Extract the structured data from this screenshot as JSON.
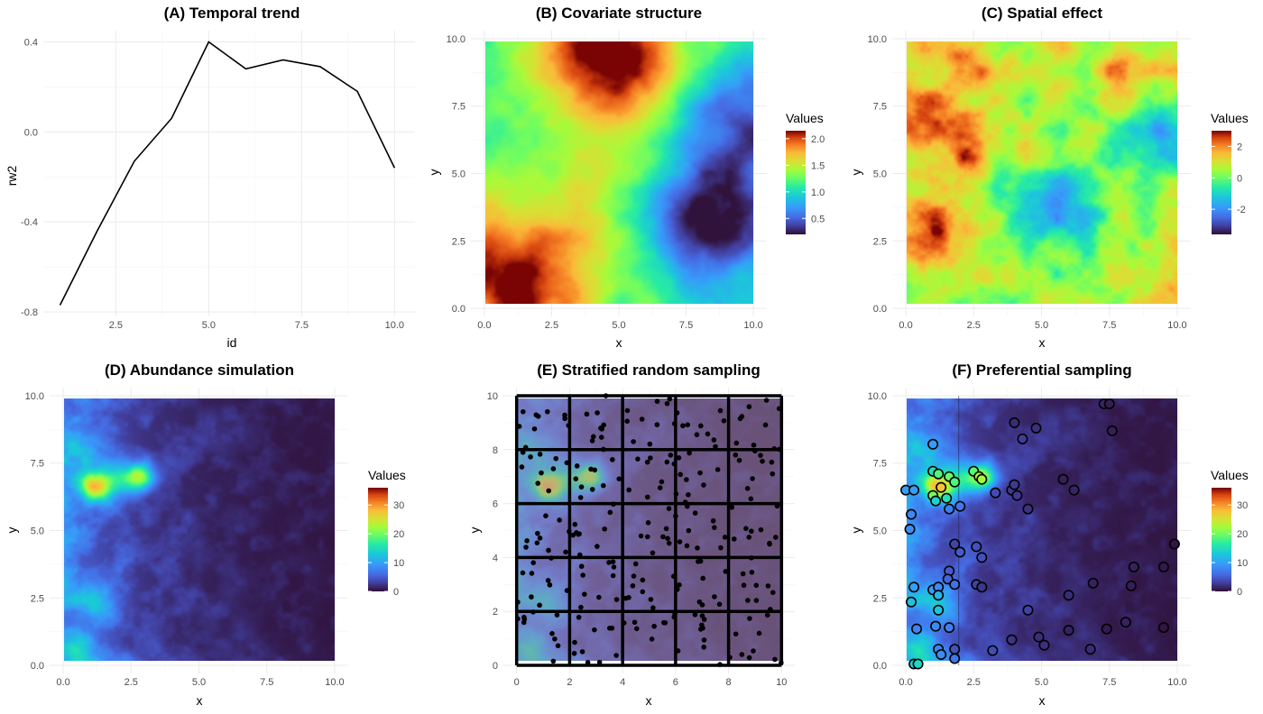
{
  "figure": {
    "description_colormap": "turbo",
    "grid_color": "#ebebeb",
    "grid_minor_color": "#f3f3f3"
  },
  "chart_data": [
    {
      "id": "A",
      "type": "line",
      "title": "(A) Temporal trend",
      "xlabel": "id",
      "ylabel": "rw2",
      "x": [
        1,
        2,
        3,
        4,
        5,
        6,
        7,
        8,
        9,
        10
      ],
      "y": [
        -0.77,
        -0.44,
        -0.13,
        0.06,
        0.4,
        0.28,
        0.32,
        0.29,
        0.18,
        -0.16
      ],
      "xlim": [
        0.55,
        10.55
      ],
      "ylim": [
        -0.82,
        0.45
      ],
      "xticks": [
        2.5,
        5.0,
        7.5,
        10.0
      ],
      "xtick_labels": [
        "2.5",
        "5.0",
        "7.5",
        "10.0"
      ],
      "yticks": [
        -0.8,
        -0.4,
        0.0,
        0.4
      ],
      "ytick_labels": [
        "-0.8",
        "-0.4",
        "0.0",
        "0.4"
      ],
      "line_color": "#000000"
    },
    {
      "id": "B",
      "type": "heatmap",
      "title": "(B) Covariate structure",
      "xlabel": "x",
      "ylabel": "y",
      "xlim": [
        -0.5,
        10.5
      ],
      "ylim": [
        -0.3,
        10.3
      ],
      "ticks": [
        0,
        2.5,
        5,
        7.5,
        10
      ],
      "tick_labels": [
        "0.0",
        "2.5",
        "5.0",
        "7.5",
        "10.0"
      ],
      "legend": {
        "title": "Values",
        "ticks": [
          0.5,
          1.0,
          1.5,
          2.0
        ],
        "tick_labels": [
          "0.5",
          "1.0",
          "1.5",
          "2.0"
        ],
        "range": [
          0.2,
          2.15
        ]
      },
      "field": "covariate"
    },
    {
      "id": "C",
      "type": "heatmap",
      "title": "(C) Spatial effect",
      "xlabel": "x",
      "ylabel": "y",
      "xlim": [
        -0.5,
        10.5
      ],
      "ylim": [
        -0.3,
        10.3
      ],
      "ticks": [
        0,
        2.5,
        5,
        7.5,
        10
      ],
      "tick_labels": [
        "0.0",
        "2.5",
        "5.0",
        "7.5",
        "10.0"
      ],
      "legend": {
        "title": "Values",
        "ticks": [
          -2,
          0,
          2
        ],
        "tick_labels": [
          "-2",
          "0",
          "2"
        ],
        "range": [
          -3.6,
          3.0
        ]
      },
      "field": "spatial"
    },
    {
      "id": "D",
      "type": "heatmap",
      "title": "(D) Abundance simulation",
      "xlabel": "x",
      "ylabel": "y",
      "xlim": [
        -0.5,
        10.5
      ],
      "ylim": [
        -0.3,
        10.3
      ],
      "ticks": [
        0,
        2.5,
        5,
        7.5,
        10
      ],
      "tick_labels": [
        "0.0",
        "2.5",
        "5.0",
        "7.5",
        "10.0"
      ],
      "legend": {
        "title": "Values",
        "ticks": [
          0,
          10,
          20,
          30
        ],
        "tick_labels": [
          "0",
          "10",
          "20",
          "30"
        ],
        "range": [
          0,
          36
        ]
      },
      "field": "abundance"
    },
    {
      "id": "E",
      "type": "scatter",
      "title": "(E) Stratified random sampling",
      "xlabel": "x",
      "ylabel": "y",
      "xlim": [
        -0.5,
        10.5
      ],
      "ylim": [
        -0.3,
        10.3
      ],
      "ticks": [
        0,
        2,
        4,
        6,
        8,
        10
      ],
      "tick_labels": [
        "0",
        "2",
        "4",
        "6",
        "8",
        "10"
      ],
      "strata": 5,
      "points_per_stratum": 10,
      "point_color": "#000000",
      "field": "abundance_faded"
    },
    {
      "id": "F",
      "type": "scatter",
      "title": "(F) Preferential sampling",
      "xlabel": "x",
      "ylabel": "y",
      "xlim": [
        -0.5,
        10.5
      ],
      "ylim": [
        -0.3,
        10.3
      ],
      "ticks": [
        0,
        2.5,
        5,
        7.5,
        10
      ],
      "tick_labels": [
        "0.0",
        "2.5",
        "5.0",
        "7.5",
        "10.0"
      ],
      "legend": {
        "title": "Values",
        "ticks": [
          0,
          10,
          20,
          30
        ],
        "tick_labels": [
          "0",
          "10",
          "20",
          "30"
        ],
        "range": [
          0,
          36
        ]
      },
      "field": "abundance",
      "points": [
        [
          0.0,
          6.5
        ],
        [
          0.3,
          6.5
        ],
        [
          0.2,
          5.6
        ],
        [
          0.15,
          5.05
        ],
        [
          1.0,
          8.2
        ],
        [
          1.0,
          7.2
        ],
        [
          1.2,
          7.1
        ],
        [
          1.6,
          7.0
        ],
        [
          1.8,
          6.8
        ],
        [
          1.3,
          6.6
        ],
        [
          1.0,
          6.3
        ],
        [
          1.1,
          6.1
        ],
        [
          1.5,
          6.2
        ],
        [
          1.6,
          5.8
        ],
        [
          2.0,
          5.9
        ],
        [
          2.5,
          7.2
        ],
        [
          2.7,
          7.0
        ],
        [
          2.8,
          6.9
        ],
        [
          3.3,
          6.4
        ],
        [
          3.9,
          6.5
        ],
        [
          4.0,
          6.7
        ],
        [
          4.1,
          6.3
        ],
        [
          4.5,
          5.8
        ],
        [
          4.0,
          9.0
        ],
        [
          4.3,
          8.4
        ],
        [
          4.8,
          8.8
        ],
        [
          5.8,
          6.9
        ],
        [
          6.2,
          6.5
        ],
        [
          7.3,
          9.7
        ],
        [
          7.5,
          9.7
        ],
        [
          7.6,
          8.7
        ],
        [
          1.8,
          4.5
        ],
        [
          2.0,
          4.2
        ],
        [
          2.6,
          4.4
        ],
        [
          2.8,
          4.0
        ],
        [
          1.6,
          3.5
        ],
        [
          1.55,
          3.2
        ],
        [
          1.8,
          3.0
        ],
        [
          2.6,
          3.0
        ],
        [
          2.8,
          2.9
        ],
        [
          1.0,
          2.8
        ],
        [
          1.2,
          2.9
        ],
        [
          0.3,
          2.9
        ],
        [
          1.2,
          2.6
        ],
        [
          0.2,
          2.35
        ],
        [
          1.2,
          2.05
        ],
        [
          0.4,
          1.35
        ],
        [
          1.1,
          1.45
        ],
        [
          1.6,
          1.4
        ],
        [
          1.8,
          0.6
        ],
        [
          1.2,
          0.6
        ],
        [
          1.3,
          0.4
        ],
        [
          1.8,
          0.25
        ],
        [
          0.3,
          0.05
        ],
        [
          0.45,
          0.05
        ],
        [
          3.2,
          0.55
        ],
        [
          3.9,
          0.95
        ],
        [
          4.5,
          2.05
        ],
        [
          4.9,
          1.05
        ],
        [
          5.1,
          0.75
        ],
        [
          6.0,
          2.6
        ],
        [
          6.0,
          1.3
        ],
        [
          6.9,
          3.05
        ],
        [
          6.8,
          0.6
        ],
        [
          7.4,
          1.35
        ],
        [
          8.1,
          1.6
        ],
        [
          8.3,
          2.95
        ],
        [
          8.4,
          3.65
        ],
        [
          9.5,
          3.65
        ],
        [
          9.9,
          4.5
        ],
        [
          9.5,
          1.4
        ]
      ]
    }
  ]
}
